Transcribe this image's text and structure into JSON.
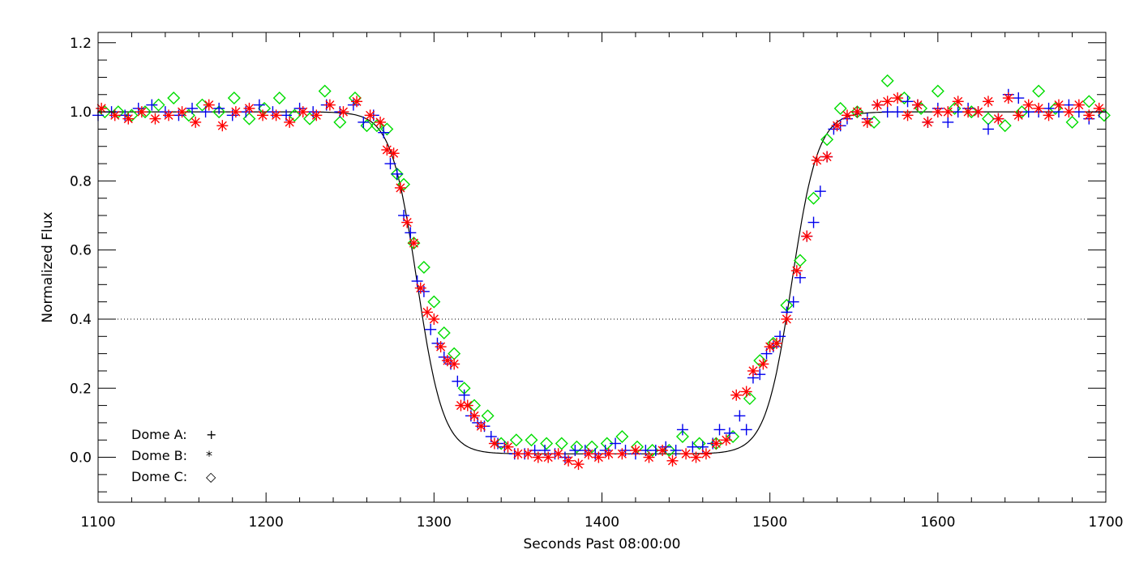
{
  "chart_data": {
    "type": "scatter",
    "xlabel": "Seconds Past 08:00:00",
    "ylabel": "Normalized Flux",
    "xlim": [
      1100,
      1700
    ],
    "ylim": [
      -0.13,
      1.23
    ],
    "x_ticks": [
      "1100",
      "1200",
      "1300",
      "1400",
      "1500",
      "1600",
      "1700"
    ],
    "y_ticks": [
      "0.0",
      "0.2",
      "0.4",
      "0.6",
      "0.8",
      "1.0",
      "1.2"
    ],
    "reference_line": {
      "y": 0.4,
      "style": "dotted"
    },
    "model": {
      "baseline": 1.0,
      "floor": 0.01,
      "ingress_mid": 1290,
      "egress_mid": 1513,
      "width": 7.8
    },
    "legend": {
      "placement": "bottom-left",
      "entries": [
        {
          "label": "Dome A:",
          "marker": "+",
          "symbol": "plus"
        },
        {
          "label": "Dome B:",
          "marker": "*",
          "symbol": "asterisk"
        },
        {
          "label": "Dome C:",
          "marker": "◇",
          "symbol": "diamond"
        }
      ]
    },
    "series": [
      {
        "name": "Dome A",
        "marker": "plus",
        "color": "#0000ee",
        "x": [
          1100,
          1108,
          1116,
          1124,
          1132,
          1140,
          1148,
          1156,
          1164,
          1172,
          1180,
          1188,
          1196,
          1204,
          1212,
          1220,
          1228,
          1236,
          1244,
          1252,
          1258,
          1264,
          1270,
          1274,
          1278,
          1282,
          1286,
          1290,
          1294,
          1298,
          1302,
          1306,
          1310,
          1314,
          1318,
          1322,
          1326,
          1330,
          1334,
          1338,
          1342,
          1348,
          1354,
          1360,
          1366,
          1372,
          1378,
          1384,
          1390,
          1396,
          1402,
          1408,
          1414,
          1420,
          1426,
          1432,
          1438,
          1444,
          1448,
          1454,
          1460,
          1466,
          1470,
          1476,
          1482,
          1486,
          1490,
          1494,
          1498,
          1502,
          1506,
          1510,
          1514,
          1518,
          1522,
          1526,
          1530,
          1534,
          1538,
          1542,
          1546,
          1552,
          1558,
          1564,
          1570,
          1576,
          1582,
          1588,
          1594,
          1600,
          1606,
          1612,
          1618,
          1624,
          1630,
          1636,
          1642,
          1648,
          1654,
          1660,
          1666,
          1672,
          1678,
          1684,
          1690,
          1696
        ],
        "y": [
          0.99,
          1.0,
          0.99,
          1.01,
          1.02,
          1.0,
          0.99,
          1.01,
          1.0,
          1.01,
          0.99,
          1.0,
          1.02,
          1.0,
          0.99,
          1.01,
          1.0,
          1.02,
          1.0,
          1.02,
          0.97,
          0.99,
          0.94,
          0.85,
          0.82,
          0.7,
          0.65,
          0.51,
          0.48,
          0.37,
          0.33,
          0.29,
          0.27,
          0.22,
          0.18,
          0.12,
          0.1,
          0.09,
          0.06,
          0.04,
          0.03,
          0.01,
          0.01,
          0.02,
          0.02,
          0.01,
          0.0,
          0.02,
          0.02,
          0.01,
          0.02,
          0.04,
          0.02,
          0.01,
          0.02,
          0.02,
          0.03,
          0.02,
          0.08,
          0.03,
          0.03,
          0.04,
          0.08,
          0.07,
          0.12,
          0.08,
          0.23,
          0.24,
          0.3,
          0.32,
          0.35,
          0.42,
          0.45,
          0.52,
          0.64,
          0.68,
          0.77,
          0.87,
          0.95,
          0.96,
          0.98,
          1.0,
          0.98,
          1.02,
          1.0,
          1.0,
          1.03,
          1.02,
          0.97,
          1.01,
          0.97,
          1.0,
          1.01,
          1.0,
          0.95,
          0.98,
          1.05,
          1.04,
          1.0,
          1.0,
          1.01,
          1.0,
          1.02,
          1.0,
          0.98,
          1.0
        ]
      },
      {
        "name": "Dome B",
        "marker": "asterisk",
        "color": "#ff0000",
        "x": [
          1102,
          1110,
          1118,
          1126,
          1134,
          1142,
          1150,
          1158,
          1166,
          1174,
          1182,
          1190,
          1198,
          1206,
          1214,
          1222,
          1230,
          1238,
          1246,
          1254,
          1262,
          1268,
          1272,
          1276,
          1280,
          1284,
          1288,
          1292,
          1296,
          1300,
          1304,
          1308,
          1312,
          1316,
          1320,
          1324,
          1328,
          1336,
          1344,
          1350,
          1356,
          1362,
          1368,
          1374,
          1380,
          1386,
          1392,
          1398,
          1404,
          1412,
          1420,
          1428,
          1436,
          1442,
          1450,
          1456,
          1462,
          1468,
          1474,
          1480,
          1486,
          1490,
          1496,
          1500,
          1504,
          1510,
          1516,
          1522,
          1528,
          1534,
          1540,
          1546,
          1552,
          1558,
          1564,
          1570,
          1576,
          1582,
          1588,
          1594,
          1600,
          1606,
          1612,
          1618,
          1624,
          1630,
          1636,
          1642,
          1648,
          1654,
          1660,
          1666,
          1672,
          1678,
          1684,
          1690,
          1696
        ],
        "y": [
          1.01,
          0.99,
          0.98,
          1.0,
          0.98,
          0.99,
          1.0,
          0.97,
          1.02,
          0.96,
          1.0,
          1.01,
          0.99,
          0.99,
          0.97,
          1.0,
          0.99,
          1.02,
          1.0,
          1.03,
          0.99,
          0.97,
          0.89,
          0.88,
          0.78,
          0.68,
          0.62,
          0.49,
          0.42,
          0.4,
          0.32,
          0.28,
          0.27,
          0.15,
          0.15,
          0.12,
          0.09,
          0.04,
          0.03,
          0.01,
          0.01,
          0.0,
          0.0,
          0.01,
          -0.01,
          -0.02,
          0.01,
          0.0,
          0.01,
          0.01,
          0.02,
          0.0,
          0.02,
          -0.01,
          0.01,
          0.0,
          0.01,
          0.04,
          0.05,
          0.18,
          0.19,
          0.25,
          0.27,
          0.32,
          0.33,
          0.4,
          0.54,
          0.64,
          0.86,
          0.87,
          0.96,
          0.99,
          1.0,
          0.97,
          1.02,
          1.03,
          1.04,
          0.99,
          1.02,
          0.97,
          1.0,
          1.0,
          1.03,
          1.0,
          1.0,
          1.03,
          0.98,
          1.04,
          0.99,
          1.02,
          1.01,
          0.99,
          1.02,
          1.0,
          1.02,
          0.99,
          1.01
        ]
      },
      {
        "name": "Dome C",
        "marker": "diamond",
        "color": "#00dd00",
        "x": [
          1104,
          1112,
          1120,
          1128,
          1136,
          1145,
          1154,
          1162,
          1172,
          1181,
          1190,
          1199,
          1208,
          1217,
          1226,
          1235,
          1244,
          1253,
          1260,
          1266,
          1272,
          1278,
          1282,
          1288,
          1294,
          1300,
          1306,
          1312,
          1318,
          1324,
          1332,
          1340,
          1349,
          1358,
          1367,
          1376,
          1385,
          1394,
          1403,
          1412,
          1421,
          1430,
          1440,
          1448,
          1458,
          1468,
          1478,
          1488,
          1494,
          1502,
          1510,
          1518,
          1526,
          1534,
          1542,
          1552,
          1562,
          1570,
          1580,
          1590,
          1600,
          1610,
          1620,
          1630,
          1640,
          1650,
          1660,
          1670,
          1680,
          1690,
          1699
        ],
        "y": [
          1.0,
          1.0,
          0.99,
          1.0,
          1.02,
          1.04,
          0.99,
          1.02,
          1.0,
          1.04,
          0.98,
          1.01,
          1.04,
          0.99,
          0.98,
          1.06,
          0.97,
          1.04,
          0.96,
          0.96,
          0.95,
          0.82,
          0.79,
          0.62,
          0.55,
          0.45,
          0.36,
          0.3,
          0.2,
          0.15,
          0.12,
          0.04,
          0.05,
          0.05,
          0.04,
          0.04,
          0.03,
          0.03,
          0.04,
          0.06,
          0.03,
          0.02,
          0.02,
          0.06,
          0.04,
          0.04,
          0.06,
          0.17,
          0.28,
          0.33,
          0.44,
          0.57,
          0.75,
          0.92,
          1.01,
          1.0,
          0.97,
          1.09,
          1.04,
          1.01,
          1.06,
          1.01,
          1.0,
          0.98,
          0.96,
          1.0,
          1.06,
          1.01,
          0.97,
          1.03,
          0.99
        ]
      }
    ]
  }
}
